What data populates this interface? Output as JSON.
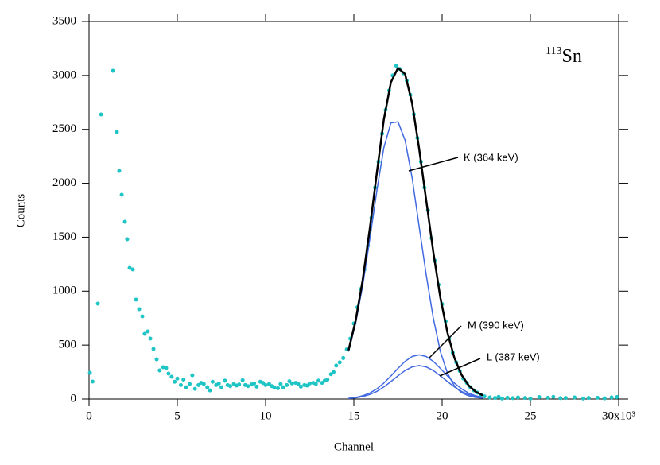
{
  "chart_data": {
    "type": "scatter",
    "xlabel": "Channel",
    "ylabel": "Counts",
    "annotation": {
      "mass": "113",
      "symbol": "Sn"
    },
    "xlim": [
      0,
      30
    ],
    "ylim": [
      0,
      3500
    ],
    "xticks": [
      0,
      5,
      10,
      15,
      20,
      25,
      {
        "value": 30,
        "label": "30x10³"
      }
    ],
    "yticks": [
      0,
      500,
      1000,
      1500,
      2000,
      2500,
      3000,
      3500
    ],
    "points": {
      "color": "#1fc4c4",
      "x": [
        0.05,
        0.2,
        0.5,
        0.68,
        1.35,
        1.58,
        1.71,
        1.85,
        2.03,
        2.16,
        2.3,
        2.48,
        2.66,
        2.84,
        3.02,
        3.15,
        3.33,
        3.47,
        3.65,
        3.83,
        4.0,
        4.2,
        4.37,
        4.5,
        4.68,
        4.85,
        5.0,
        5.2,
        5.35,
        5.5,
        5.7,
        5.85,
        6.0,
        6.2,
        6.35,
        6.5,
        6.7,
        6.85,
        7.0,
        7.2,
        7.35,
        7.5,
        7.7,
        7.85,
        8.0,
        8.2,
        8.35,
        8.5,
        8.7,
        8.85,
        9.0,
        9.2,
        9.35,
        9.5,
        9.7,
        9.85,
        10.0,
        10.2,
        10.35,
        10.5,
        10.7,
        10.85,
        11.0,
        11.2,
        11.35,
        11.5,
        11.7,
        11.85,
        12.0,
        12.2,
        12.35,
        12.5,
        12.7,
        12.85,
        13.0,
        13.2,
        13.35,
        13.5,
        13.7,
        13.85,
        14.0,
        14.2,
        14.4,
        14.6,
        14.8,
        15.0,
        15.2,
        15.4,
        15.6,
        15.8,
        16.0,
        16.2,
        16.4,
        16.6,
        16.8,
        17.0,
        17.2,
        17.4,
        17.6,
        17.8,
        18.0,
        18.2,
        18.4,
        18.6,
        18.8,
        19.0,
        19.2,
        19.4,
        19.6,
        19.8,
        20.0,
        20.2,
        20.4,
        20.6,
        20.8,
        21.0,
        21.2,
        21.4,
        21.6,
        21.8,
        22.0,
        22.2,
        22.4,
        22.7,
        23.0,
        23.2,
        23.4,
        23.7,
        24.0,
        24.3,
        24.7,
        25.0,
        25.5,
        26.0,
        26.3,
        26.7,
        27.0,
        27.5,
        28.0,
        28.3,
        28.8,
        29.2,
        29.6,
        29.9
      ],
      "y": [
        243,
        162,
        884,
        2638,
        3043,
        2476,
        2115,
        1894,
        1643,
        1481,
        1216,
        1201,
        921,
        833,
        766,
        604,
        626,
        560,
        464,
        368,
        265,
        295,
        287,
        236,
        206,
        160,
        190,
        130,
        180,
        110,
        140,
        220,
        95,
        130,
        150,
        140,
        110,
        80,
        160,
        130,
        145,
        110,
        170,
        130,
        120,
        140,
        125,
        135,
        175,
        130,
        120,
        135,
        145,
        115,
        160,
        150,
        130,
        140,
        120,
        105,
        100,
        140,
        110,
        130,
        165,
        145,
        150,
        140,
        115,
        130,
        125,
        145,
        150,
        140,
        170,
        150,
        170,
        180,
        230,
        250,
        310,
        340,
        380,
        460,
        560,
        700,
        850,
        1020,
        1200,
        1420,
        1680,
        1960,
        2200,
        2460,
        2680,
        2860,
        3000,
        3090,
        3060,
        3020,
        2950,
        2820,
        2640,
        2420,
        2200,
        1960,
        1750,
        1490,
        1280,
        1060,
        880,
        720,
        560,
        430,
        340,
        260,
        190,
        150,
        110,
        80,
        60,
        40,
        25,
        15,
        10,
        20,
        5,
        12,
        8,
        15,
        10,
        5,
        18,
        12,
        20,
        8,
        10,
        15,
        5,
        10,
        12,
        6,
        15,
        18
      ]
    },
    "fit": {
      "color": "#000000",
      "x": [
        14.7,
        15.1,
        15.5,
        15.9,
        16.3,
        16.7,
        17.1,
        17.5,
        17.9,
        18.3,
        18.7,
        19.1,
        19.5,
        19.9,
        20.3,
        20.7,
        21.1,
        21.5,
        21.9,
        22.3
      ],
      "y": [
        452,
        726,
        1103,
        1577,
        2095,
        2590,
        2936,
        3069,
        3013,
        2742,
        2320,
        1842,
        1363,
        939,
        616,
        380,
        225,
        127,
        68,
        34
      ]
    },
    "curves": [
      {
        "label": "K (364 keV)",
        "color": "#4169e1",
        "x": [
          14.7,
          15.1,
          15.5,
          15.9,
          16.3,
          16.7,
          17.1,
          17.5,
          17.9,
          18.3,
          18.7,
          19.1,
          19.5,
          19.9,
          20.3,
          20.7,
          21.1,
          21.5,
          21.9,
          22.3
        ],
        "y": [
          440,
          700,
          1050,
          1480,
          1930,
          2330,
          2560,
          2570,
          2400,
          2050,
          1600,
          1150,
          750,
          440,
          240,
          120,
          60,
          30,
          15,
          8
        ]
      },
      {
        "label": "M (390 keV)",
        "color": "#4169e1",
        "x": [
          14.7,
          15.1,
          15.5,
          15.9,
          16.3,
          16.7,
          17.1,
          17.5,
          17.9,
          18.3,
          18.7,
          19.1,
          19.5,
          19.9,
          20.3,
          20.7,
          21.1,
          21.5,
          21.9,
          22.3
        ],
        "y": [
          7,
          15,
          30,
          55,
          94,
          148,
          214,
          284,
          349,
          394,
          410,
          394,
          349,
          284,
          214,
          148,
          94,
          55,
          30,
          15
        ]
      },
      {
        "label": "L (387 keV)",
        "color": "#4169e1",
        "x": [
          14.7,
          15.1,
          15.5,
          15.9,
          16.3,
          16.7,
          17.1,
          17.5,
          17.9,
          18.3,
          18.7,
          19.1,
          19.5,
          19.9,
          20.3,
          20.7,
          21.1,
          21.5,
          21.9,
          22.3
        ],
        "y": [
          5,
          11,
          23,
          42,
          71,
          112,
          162,
          215,
          264,
          298,
          310,
          298,
          264,
          215,
          162,
          112,
          71,
          42,
          23,
          11
        ]
      }
    ]
  }
}
